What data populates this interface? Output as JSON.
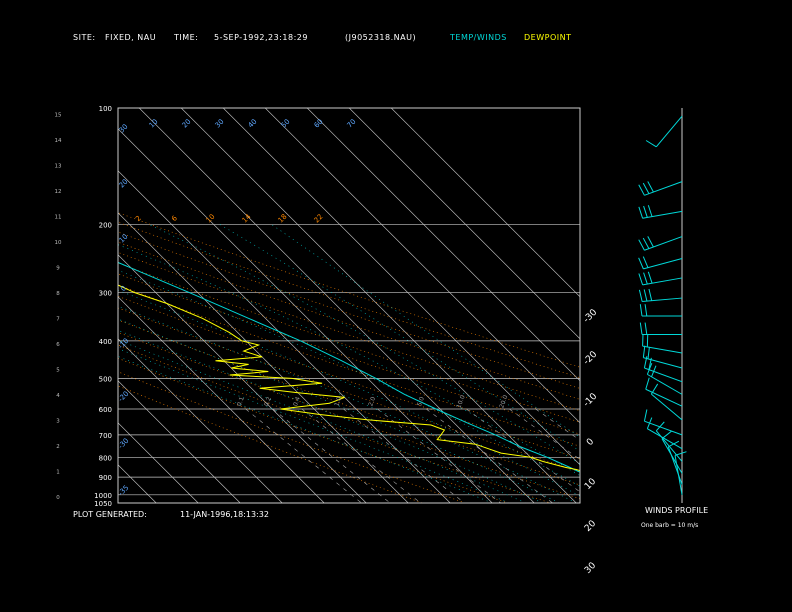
{
  "header": {
    "site_label": "SITE:",
    "site_value": "FIXED, NAU",
    "time_label": "TIME:",
    "time_value": "5-SEP-1992,23:18:29",
    "file_id": "(J9052318.NAU)",
    "temp_winds_label": "TEMP/WINDS",
    "dewpoint_label": "DEWPOINT"
  },
  "footer": {
    "plot_generated_label": "PLOT GENERATED:",
    "plot_generated_value": "11-JAN-1996,18:13:32"
  },
  "colors": {
    "temperature": "#00d8d8",
    "dewpoint": "#ffff00",
    "isobar": "#c8c8c8",
    "isotherm": "#c8c8c8",
    "dry_adiabat": "#ff8800",
    "moist_adiabat": "#00c8c8",
    "mixing_ratio": "#aaaaaa",
    "wind_barb": "#00d8d8"
  },
  "chart_data": [
    {
      "type": "line",
      "subtype": "skew-t log-p sounding",
      "title": "",
      "xlabel": "",
      "ylabel": "",
      "y_axis_scale": "log",
      "y_axis_pressure_ticks": [
        100,
        200,
        300,
        400,
        500,
        600,
        700,
        800,
        900,
        1000,
        1050
      ],
      "y_axis_height_ticks": [
        0,
        1,
        2,
        3,
        4,
        5,
        6,
        7,
        8,
        9,
        10,
        11,
        12,
        13,
        14,
        15
      ],
      "isotherm_top_labels": [
        -110,
        -100,
        -90,
        -80,
        -70,
        -60,
        -50,
        -40
      ],
      "isotherm_right_labels": [
        -30,
        -20,
        -10,
        0,
        10,
        20,
        30
      ],
      "dry_adiabat_labels": [
        2,
        6,
        10,
        14,
        18,
        22
      ],
      "moist_adiabat_labels": [
        10,
        20,
        30,
        40,
        50,
        60,
        70
      ],
      "mixing_ratio_labels": [
        0.1,
        0.2,
        0.4,
        1.0,
        2.0,
        5.0,
        10.0,
        20.0
      ],
      "grid": true,
      "series": [
        {
          "name": "TEMP/WINDS",
          "points": [
            {
              "p": 1000,
              "t": 27
            },
            {
              "p": 980,
              "t": 25.5
            },
            {
              "p": 950,
              "t": 24
            },
            {
              "p": 925,
              "t": 22
            },
            {
              "p": 900,
              "t": 20
            },
            {
              "p": 870,
              "t": 18
            },
            {
              "p": 850,
              "t": 17
            },
            {
              "p": 800,
              "t": 14
            },
            {
              "p": 750,
              "t": 10
            },
            {
              "p": 700,
              "t": 7
            },
            {
              "p": 650,
              "t": 3
            },
            {
              "p": 600,
              "t": -1
            },
            {
              "p": 550,
              "t": -5
            },
            {
              "p": 500,
              "t": -8
            },
            {
              "p": 450,
              "t": -12
            },
            {
              "p": 400,
              "t": -17
            },
            {
              "p": 350,
              "t": -24
            },
            {
              "p": 300,
              "t": -32
            },
            {
              "p": 250,
              "t": -42
            },
            {
              "p": 200,
              "t": -55
            },
            {
              "p": 175,
              "t": -60
            },
            {
              "p": 150,
              "t": -66
            },
            {
              "p": 125,
              "t": -72
            },
            {
              "p": 100,
              "t": -79
            }
          ]
        },
        {
          "name": "DEWPOINT",
          "points": [
            {
              "p": 1000,
              "t": 21
            },
            {
              "p": 970,
              "t": 21
            },
            {
              "p": 950,
              "t": 20
            },
            {
              "p": 920,
              "t": 22
            },
            {
              "p": 900,
              "t": 19
            },
            {
              "p": 880,
              "t": 20
            },
            {
              "p": 860,
              "t": 18
            },
            {
              "p": 850,
              "t": 16
            },
            {
              "p": 820,
              "t": 12
            },
            {
              "p": 800,
              "t": 10
            },
            {
              "p": 780,
              "t": 4
            },
            {
              "p": 760,
              "t": 2
            },
            {
              "p": 740,
              "t": 0
            },
            {
              "p": 720,
              "t": -8
            },
            {
              "p": 700,
              "t": -6
            },
            {
              "p": 680,
              "t": -4
            },
            {
              "p": 660,
              "t": -6
            },
            {
              "p": 640,
              "t": -20
            },
            {
              "p": 620,
              "t": -30
            },
            {
              "p": 600,
              "t": -38
            },
            {
              "p": 580,
              "t": -25
            },
            {
              "p": 560,
              "t": -20
            },
            {
              "p": 545,
              "t": -30
            },
            {
              "p": 530,
              "t": -38
            },
            {
              "p": 515,
              "t": -22
            },
            {
              "p": 500,
              "t": -28
            },
            {
              "p": 490,
              "t": -42
            },
            {
              "p": 480,
              "t": -32
            },
            {
              "p": 470,
              "t": -40
            },
            {
              "p": 460,
              "t": -35
            },
            {
              "p": 450,
              "t": -42
            },
            {
              "p": 440,
              "t": -30
            },
            {
              "p": 425,
              "t": -33
            },
            {
              "p": 410,
              "t": -28
            },
            {
              "p": 400,
              "t": -31
            },
            {
              "p": 380,
              "t": -32
            },
            {
              "p": 350,
              "t": -35
            },
            {
              "p": 320,
              "t": -40
            },
            {
              "p": 300,
              "t": -45
            },
            {
              "p": 260,
              "t": -52
            },
            {
              "p": 230,
              "t": -60
            },
            {
              "p": 200,
              "t": -68
            },
            {
              "p": 180,
              "t": -72
            },
            {
              "p": 160,
              "t": -77
            },
            {
              "p": 140,
              "t": -82
            },
            {
              "p": 125,
              "t": -87
            },
            {
              "p": 110,
              "t": -92
            },
            {
              "p": 100,
              "t": -95
            }
          ]
        }
      ]
    },
    {
      "type": "wind-profile",
      "title": "WINDS PROFILE",
      "note": "One barb = 10 m/s",
      "barbs": [
        {
          "p": 105,
          "dir": 220,
          "speed": 10
        },
        {
          "p": 155,
          "dir": 250,
          "speed": 25
        },
        {
          "p": 185,
          "dir": 260,
          "speed": 25
        },
        {
          "p": 215,
          "dir": 250,
          "speed": 30
        },
        {
          "p": 245,
          "dir": 255,
          "speed": 20
        },
        {
          "p": 275,
          "dir": 260,
          "speed": 25
        },
        {
          "p": 310,
          "dir": 265,
          "speed": 25
        },
        {
          "p": 345,
          "dir": 270,
          "speed": 20
        },
        {
          "p": 385,
          "dir": 270,
          "speed": 15
        },
        {
          "p": 430,
          "dir": 280,
          "speed": 15
        },
        {
          "p": 470,
          "dir": 285,
          "speed": 15
        },
        {
          "p": 510,
          "dir": 290,
          "speed": 15
        },
        {
          "p": 550,
          "dir": 300,
          "speed": 15
        },
        {
          "p": 590,
          "dir": 295,
          "speed": 10
        },
        {
          "p": 640,
          "dir": 310,
          "speed": 10
        },
        {
          "p": 700,
          "dir": 290,
          "speed": 10
        },
        {
          "p": 760,
          "dir": 300,
          "speed": 10
        },
        {
          "p": 820,
          "dir": 320,
          "speed": 10
        },
        {
          "p": 880,
          "dir": 330,
          "speed": 10
        },
        {
          "p": 940,
          "dir": 340,
          "speed": 5
        },
        {
          "p": 1000,
          "dir": 350,
          "speed": 5
        }
      ]
    }
  ]
}
